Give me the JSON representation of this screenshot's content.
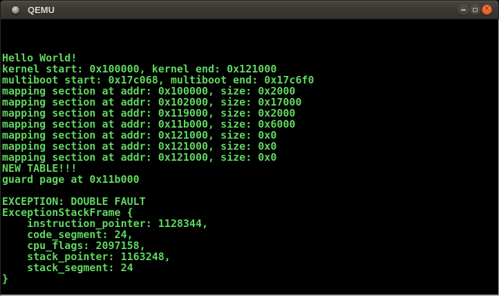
{
  "window": {
    "title": "QEMU",
    "controls": {
      "minimize": "minimize",
      "maximize": "maximize",
      "close": "close",
      "close_glyph": "✕"
    }
  },
  "terminal": {
    "lines": [
      "Hello World!",
      "kernel start: 0x100000, kernel end: 0x121000",
      "multiboot start: 0x17c068, multiboot end: 0x17c6f0",
      "mapping section at addr: 0x100000, size: 0x2000",
      "mapping section at addr: 0x102000, size: 0x17000",
      "mapping section at addr: 0x119000, size: 0x2000",
      "mapping section at addr: 0x11b000, size: 0x6000",
      "mapping section at addr: 0x121000, size: 0x0",
      "mapping section at addr: 0x121000, size: 0x0",
      "mapping section at addr: 0x121000, size: 0x0",
      "NEW TABLE!!!",
      "guard page at 0x11b000",
      "",
      "EXCEPTION: DOUBLE FAULT",
      "ExceptionStackFrame {",
      "    instruction_pointer: 1128344,",
      "    code_segment: 24,",
      "    cpu_flags: 2097158,",
      "    stack_pointer: 1163248,",
      "    stack_segment: 24",
      "}"
    ]
  },
  "colors": {
    "terminal_text": "#60d860",
    "terminal_bg": "#000000",
    "titlebar_bg": "#3d3a35",
    "close_button": "#ec6630"
  }
}
